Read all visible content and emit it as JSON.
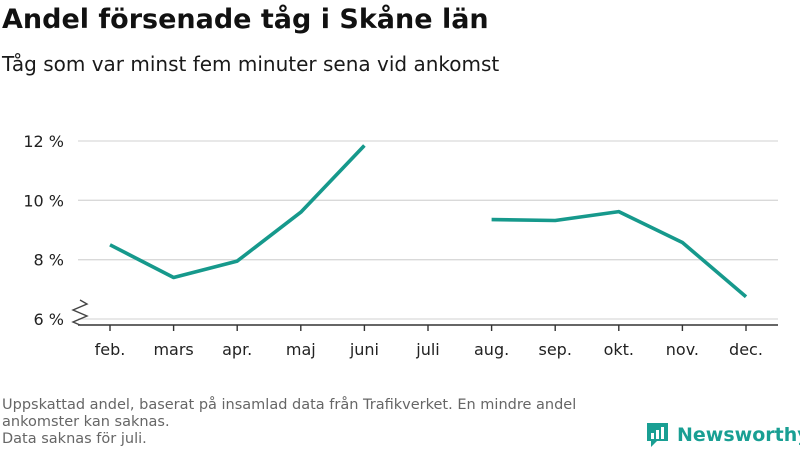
{
  "header": {
    "title": "Andel försenade tåg i Skåne län",
    "subtitle": "Tåg som var minst fem minuter sena vid ankomst"
  },
  "footer": {
    "note_line1": "Uppskattad andel, baserat på insamlad data från Trafikverket. En mindre andel ankomster kan saknas.",
    "note_line2": "Data saknas för juli.",
    "brand_name": "Newsworthy",
    "brand_icon": "newsworthy-logo-icon"
  },
  "colors": {
    "line": "#16998c",
    "grid": "#d9d9d9",
    "axis": "#333333",
    "brand": "#199f93"
  },
  "chart_data": {
    "type": "line",
    "title": "Andel försenade tåg i Skåne län",
    "subtitle": "Tåg som var minst fem minuter sena vid ankomst",
    "categories": [
      "feb.",
      "mars",
      "apr.",
      "maj",
      "juni",
      "juli",
      "aug.",
      "sep.",
      "okt.",
      "nov.",
      "dec."
    ],
    "series": [
      {
        "values": [
          8.5,
          7.4,
          7.95,
          9.6,
          11.85,
          null,
          9.35,
          9.32,
          9.62,
          8.58,
          6.75
        ]
      }
    ],
    "y_ticks": [
      6,
      8,
      10,
      12
    ],
    "y_tick_labels": [
      "6 %",
      "8 %",
      "10 %",
      "12 %"
    ],
    "ylim": [
      6,
      12.6
    ],
    "y_axis_break": true,
    "grid": "horizontal",
    "xlabel": "",
    "ylabel": ""
  }
}
